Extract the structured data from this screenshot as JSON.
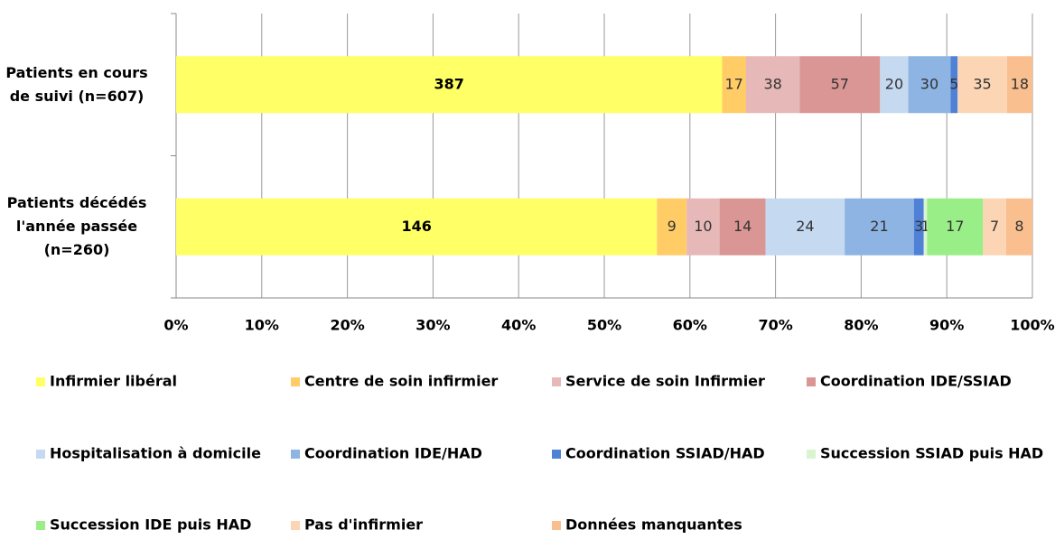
{
  "chart_data": {
    "type": "bar",
    "orientation": "horizontal",
    "stacking": "percent",
    "categories": [
      "Patients en cours de suivi (n=607)",
      "Patients décédés l'année passée (n=260)"
    ],
    "series": [
      {
        "name": "Infirmier libéral",
        "color": "#ffff66",
        "values": [
          387,
          146
        ]
      },
      {
        "name": "Centre de soin infirmier",
        "color": "#ffcc66",
        "values": [
          17,
          9
        ]
      },
      {
        "name": "Service de soin Infirmier",
        "color": "#e6b8b7",
        "values": [
          38,
          10
        ]
      },
      {
        "name": "Coordination IDE/SSIAD",
        "color": "#da9694",
        "values": [
          57,
          14
        ]
      },
      {
        "name": "Hospitalisation à domicile",
        "color": "#c5d9f1",
        "values": [
          20,
          24
        ]
      },
      {
        "name": "Coordination IDE/HAD",
        "color": "#8db4e2",
        "values": [
          30,
          21
        ]
      },
      {
        "name": "Coordination SSIAD/HAD",
        "color": "#4f81d6",
        "values": [
          5,
          3
        ]
      },
      {
        "name": "Succession SSIAD puis HAD",
        "color": "#d8f5d0",
        "values": [
          null,
          1
        ]
      },
      {
        "name": "Succession IDE puis HAD",
        "color": "#99ee88",
        "values": [
          null,
          17
        ]
      },
      {
        "name": "Pas d'infirmier",
        "color": "#fcd5b4",
        "values": [
          35,
          7
        ]
      },
      {
        "name": "Données manquantes",
        "color": "#fabf8f",
        "values": [
          18,
          8
        ]
      }
    ],
    "xlim": [
      0,
      100
    ],
    "xticks": [
      {
        "value": 0,
        "label": "0%"
      },
      {
        "value": 10,
        "label": "10%"
      },
      {
        "value": 20,
        "label": "20%"
      },
      {
        "value": 30,
        "label": "30%"
      },
      {
        "value": 40,
        "label": "40%"
      },
      {
        "value": 50,
        "label": "50%"
      },
      {
        "value": 60,
        "label": "60%"
      },
      {
        "value": 70,
        "label": "70%"
      },
      {
        "value": 80,
        "label": "80%"
      },
      {
        "value": 90,
        "label": "90%"
      },
      {
        "value": 100,
        "label": "100%"
      }
    ],
    "grid": true,
    "legend": "bottom"
  }
}
